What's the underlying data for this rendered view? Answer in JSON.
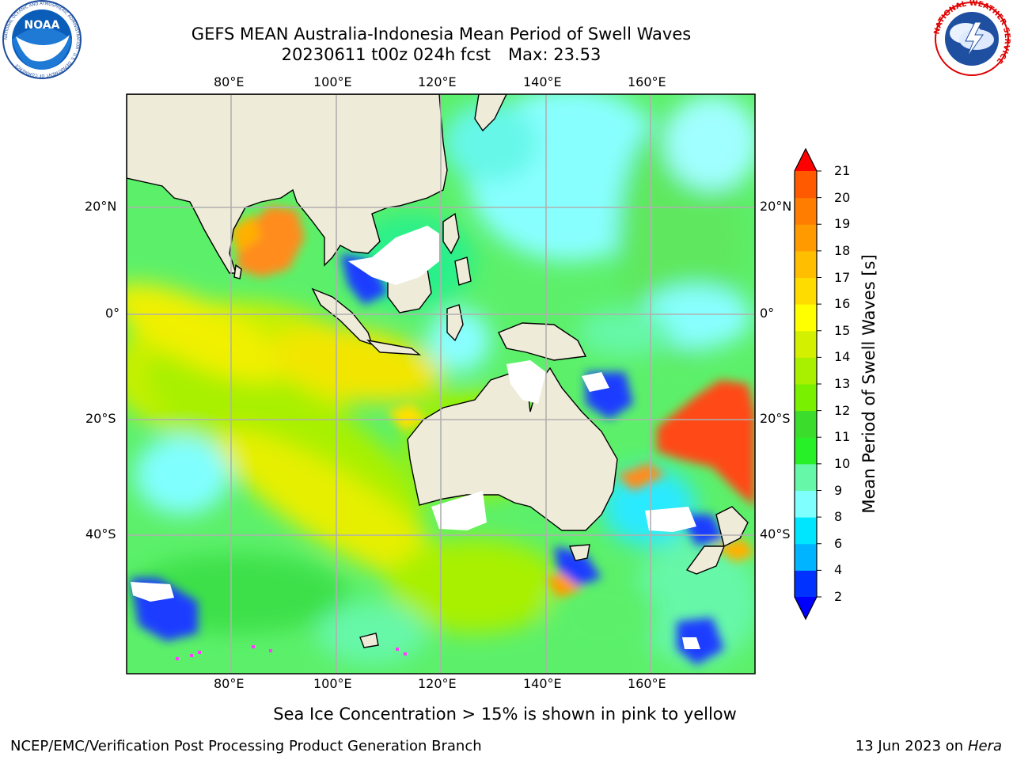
{
  "header": {
    "title_line1": "GEFS MEAN Australia-Indonesia Mean Period of Swell Waves",
    "run": "20230611 t00z 024h fcst",
    "max_label": "Max: 23.53"
  },
  "logos": {
    "noaa_text": "NOAA",
    "noaa_ring": "NATIONAL OCEANIC AND ATMOSPHERIC ADMINISTRATION · U.S. DEPARTMENT OF COMMERCE",
    "nws_ring": "NATIONAL WEATHER SERVICE"
  },
  "map": {
    "lon_labels": [
      "80°E",
      "100°E",
      "120°E",
      "140°E",
      "160°E"
    ],
    "lat_labels": [
      "20°N",
      "0°",
      "20°S",
      "40°S"
    ],
    "colors": {
      "land": "#efebd9",
      "grid": "#b0b0b0",
      "frame": "#000000"
    }
  },
  "colorbar": {
    "title": "Mean Period of Swell Waves [s]",
    "ticks": [
      "2",
      "4",
      "6",
      "8",
      "9",
      "10",
      "11",
      "12",
      "13",
      "14",
      "15",
      "16",
      "17",
      "18",
      "19",
      "20",
      "21"
    ],
    "colors": [
      "#0032ff",
      "#00b4ff",
      "#00e6ff",
      "#80ffff",
      "#66f7a8",
      "#28f028",
      "#3cdc2d",
      "#78f000",
      "#a8f000",
      "#d2f000",
      "#ffff00",
      "#ffdc00",
      "#ffbe00",
      "#ff9b00",
      "#ff7d00",
      "#ff5a00",
      "#ff2800"
    ],
    "under_color": "#0000ff",
    "over_color": "#ff0000"
  },
  "note": "Sea Ice Concentration > 15% is shown in pink to yellow",
  "footer": {
    "left": "NCEP/EMC/Verification Post Processing Product Generation Branch",
    "date": "13 Jun 2023 on",
    "machine": "Hera"
  }
}
